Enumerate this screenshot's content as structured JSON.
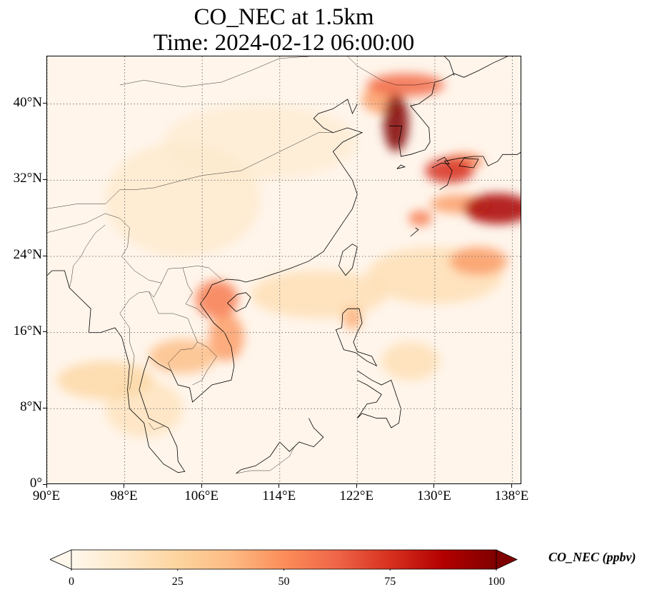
{
  "title": {
    "line1": "CO_NEC at 1.5km",
    "line2": "Time: 2024-02-12 06:00:00"
  },
  "map": {
    "extent": {
      "lon": [
        90,
        139
      ],
      "lat": [
        0,
        45
      ]
    },
    "lon_ticks": [
      {
        "value": 90,
        "label": "90°E"
      },
      {
        "value": 98,
        "label": "98°E"
      },
      {
        "value": 106,
        "label": "106°E"
      },
      {
        "value": 114,
        "label": "114°E"
      },
      {
        "value": 122,
        "label": "122°E"
      },
      {
        "value": 130,
        "label": "130°E"
      },
      {
        "value": 138,
        "label": "138°E"
      }
    ],
    "lat_ticks": [
      {
        "value": 0,
        "label": "0°"
      },
      {
        "value": 8,
        "label": "8°N"
      },
      {
        "value": 16,
        "label": "16°N"
      },
      {
        "value": 24,
        "label": "24°N"
      },
      {
        "value": 32,
        "label": "32°N"
      },
      {
        "value": 40,
        "label": "40°N"
      }
    ],
    "gridlines": "dotted",
    "colormap": "OrRd",
    "plumes": [
      {
        "lon": 126.0,
        "lat": 38.0,
        "rlon": 1.3,
        "rlat": 3.0,
        "value": 100
      },
      {
        "lon": 127.0,
        "lat": 42.0,
        "rlon": 4.0,
        "rlat": 1.2,
        "value": 60
      },
      {
        "lon": 124.5,
        "lat": 40.5,
        "rlon": 2.0,
        "rlat": 1.5,
        "value": 45
      },
      {
        "lon": 131.5,
        "lat": 33.0,
        "rlon": 2.5,
        "rlat": 1.3,
        "value": 75
      },
      {
        "lon": 133.0,
        "lat": 34.0,
        "rlon": 2.0,
        "rlat": 0.8,
        "value": 55
      },
      {
        "lon": 136.5,
        "lat": 29.0,
        "rlon": 3.5,
        "rlat": 1.6,
        "value": 90
      },
      {
        "lon": 132.5,
        "lat": 29.5,
        "rlon": 3.0,
        "rlat": 1.0,
        "value": 45
      },
      {
        "lon": 134.5,
        "lat": 23.5,
        "rlon": 3.0,
        "rlat": 1.5,
        "value": 45
      },
      {
        "lon": 128.5,
        "lat": 28.0,
        "rlon": 1.2,
        "rlat": 0.8,
        "value": 55
      },
      {
        "lon": 107.5,
        "lat": 19.5,
        "rlon": 2.2,
        "rlat": 2.0,
        "value": 55
      },
      {
        "lon": 108.5,
        "lat": 15.5,
        "rlon": 1.8,
        "rlat": 2.5,
        "value": 45
      },
      {
        "lon": 104.0,
        "lat": 13.5,
        "rlon": 3.5,
        "rlat": 1.8,
        "value": 35
      },
      {
        "lon": 96.0,
        "lat": 11.0,
        "rlon": 5.0,
        "rlat": 2.0,
        "value": 22
      },
      {
        "lon": 100.0,
        "lat": 8.0,
        "rlon": 4.0,
        "rlat": 3.0,
        "value": 15
      },
      {
        "lon": 121.5,
        "lat": 17.5,
        "rlon": 1.0,
        "rlat": 1.2,
        "value": 40
      },
      {
        "lon": 118.0,
        "lat": 20.0,
        "rlon": 7.0,
        "rlat": 2.5,
        "value": 18
      },
      {
        "lon": 130.0,
        "lat": 22.0,
        "rlon": 7.0,
        "rlat": 3.0,
        "value": 18
      },
      {
        "lon": 104.0,
        "lat": 30.0,
        "rlon": 8.0,
        "rlat": 6.0,
        "value": 10
      },
      {
        "lon": 112.0,
        "lat": 36.0,
        "rlon": 10.0,
        "rlat": 4.0,
        "value": 8
      },
      {
        "lon": 127.5,
        "lat": 13.0,
        "rlon": 3.0,
        "rlat": 2.0,
        "value": 18
      }
    ]
  },
  "colorbar": {
    "label": "CO_NEC (ppbv)",
    "range": [
      0,
      100
    ],
    "extend": "both",
    "ticks": [
      {
        "value": 0,
        "label": "0"
      },
      {
        "value": 25,
        "label": "25"
      },
      {
        "value": 50,
        "label": "50"
      },
      {
        "value": 75,
        "label": "75"
      },
      {
        "value": 100,
        "label": "100"
      }
    ]
  },
  "colors": {
    "cmap_stops": [
      "#fff7ec",
      "#fee8c8",
      "#fdd49e",
      "#fdbb84",
      "#fc8d59",
      "#ef6548",
      "#d7301f",
      "#b30000",
      "#7f0000"
    ]
  }
}
